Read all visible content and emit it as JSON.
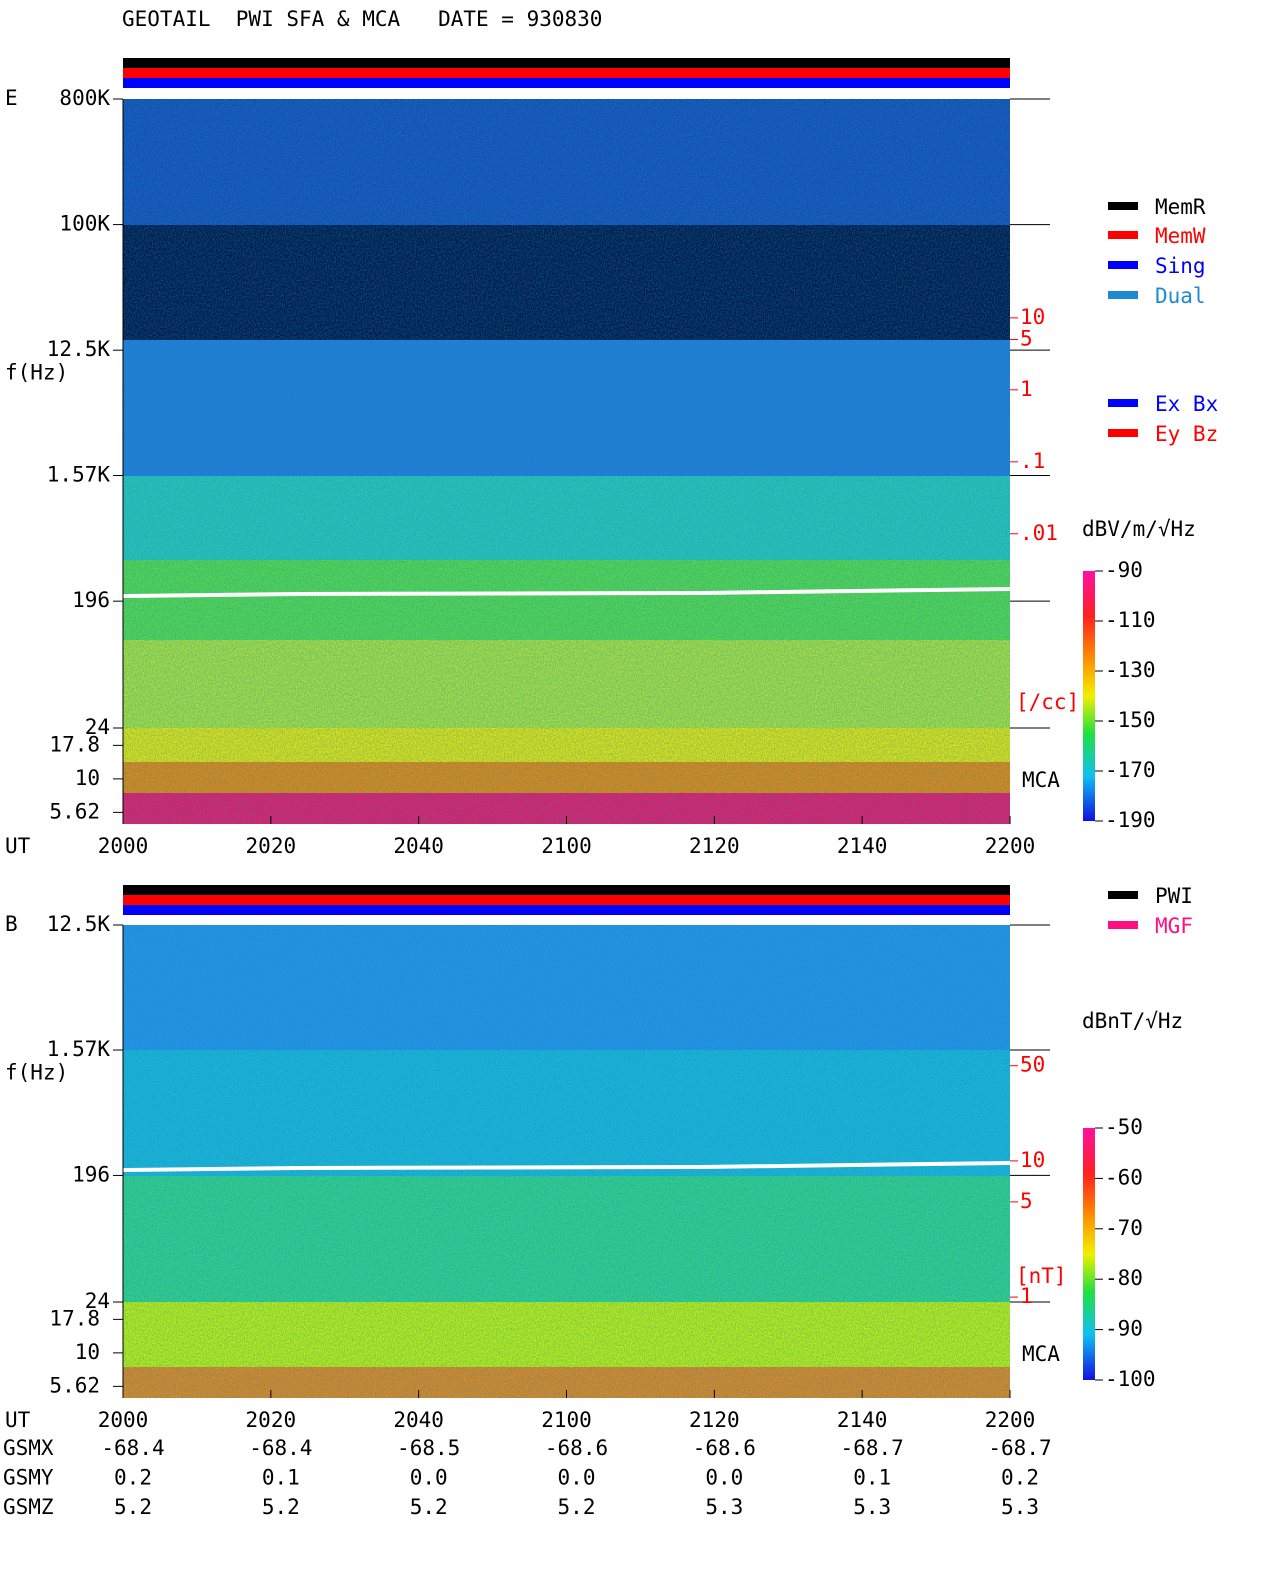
{
  "title": "GEOTAIL  PWI SFA & MCA   DATE = 930830",
  "chart_data": [
    {
      "type": "spectrogram",
      "panel_label": "E",
      "ylabel": "f(Hz)",
      "xlabel": "UT",
      "xticks": [
        "2000",
        "2020",
        "2040",
        "2100",
        "2120",
        "2140",
        "2200"
      ],
      "ylim": [
        24,
        800000
      ],
      "log_y": true,
      "yticks": [
        {
          "value": 800000,
          "label": "800K"
        },
        {
          "value": 100000,
          "label": "100K"
        },
        {
          "value": 12500,
          "label": "12.5K"
        },
        {
          "value": 1570,
          "label": "1.57K"
        },
        196,
        24
      ],
      "mca_label": "MCA",
      "mca_ylim": [
        4.6,
        24
      ],
      "mca_ticks": [
        17.8,
        10,
        5.62
      ],
      "y2_label": "[/cc]",
      "y2lim": [
        2e-05,
        11000
      ],
      "y2ticks": [
        10,
        5,
        1,
        {
          "value": 0.1,
          "label": ".1"
        },
        {
          "value": 0.01,
          "label": ".01"
        }
      ],
      "colorbar": {
        "label": "dBV/m/√Hz",
        "lim": [
          -190,
          -90
        ],
        "ticks": [
          -90,
          -110,
          -130,
          -150,
          -170,
          -190
        ]
      },
      "legend": [
        {
          "name": "MemR",
          "color": "#000000"
        },
        {
          "name": "MemW",
          "color": "#ff0000"
        },
        {
          "name": "Sing",
          "color": "#0000ff"
        },
        {
          "name": "Dual",
          "color": "#1e8ad0"
        }
      ],
      "legend2": [
        {
          "name": "Ex Bx",
          "color": "#0000ff"
        },
        {
          "name": "Ey Bz",
          "color": "#ff0000"
        }
      ]
    },
    {
      "type": "spectrogram",
      "panel_label": "B",
      "ylabel": "f(Hz)",
      "xlabel": "UT",
      "xticks": [
        "2000",
        "2020",
        "2040",
        "2100",
        "2120",
        "2140",
        "2200"
      ],
      "ylim": [
        24,
        12500
      ],
      "log_y": true,
      "yticks": [
        {
          "value": 12500,
          "label": "12.5K"
        },
        {
          "value": 1570,
          "label": "1.57K"
        },
        196,
        24
      ],
      "mca_label": "MCA",
      "mca_ylim": [
        4.6,
        24
      ],
      "mca_ticks": [
        17.8,
        10,
        5.62
      ],
      "y2_label": "[nT]",
      "y2lim": [
        0.92,
        540
      ],
      "y2ticks": [
        50,
        10,
        5,
        1
      ],
      "colorbar": {
        "label": "dBnT/√Hz",
        "lim": [
          -100,
          -50
        ],
        "ticks": [
          -50,
          -60,
          -70,
          -80,
          -90,
          -100
        ]
      },
      "legend": [
        {
          "name": "PWI",
          "color": "#000000"
        },
        {
          "name": "MGF",
          "color": "#ff1080"
        }
      ],
      "legend2": []
    }
  ],
  "orbit": {
    "rows": [
      {
        "label": "GSMX",
        "values": [
          "-68.4",
          "-68.4",
          "-68.5",
          "-68.6",
          "-68.6",
          "-68.7",
          "-68.7"
        ]
      },
      {
        "label": "GSMY",
        "values": [
          "0.2",
          "0.1",
          "0.0",
          "0.0",
          "0.0",
          "0.1",
          "0.2"
        ]
      },
      {
        "label": "GSMZ",
        "values": [
          "5.2",
          "5.2",
          "5.2",
          "5.2",
          "5.3",
          "5.3",
          "5.3"
        ]
      }
    ]
  }
}
